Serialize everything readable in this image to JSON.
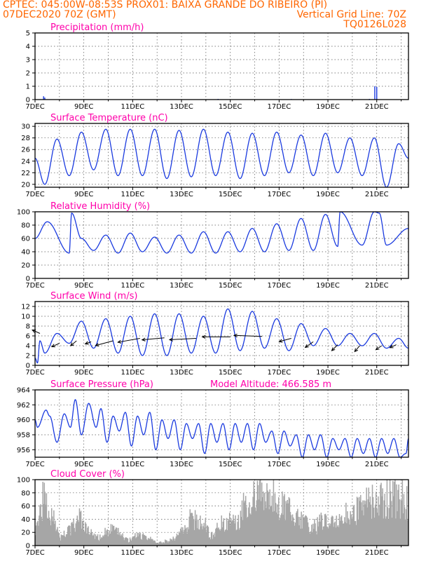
{
  "header": {
    "line1_left": "CPTEC:  045:00W-08:53S  PROX01: BAIXA GRANDE DO RIBEIRO (PI)",
    "line2_left": "07DEC2020 70Z (GMT)",
    "line2_right": "Vertical Grid Line: 70Z",
    "line3_right": "TQ0126L028"
  },
  "colors": {
    "header": "#ff6600",
    "title": "#ff00aa",
    "series": "#1a3adf",
    "cloud": "#a6a6a6",
    "arrow": "#000000"
  },
  "x_axis": {
    "tick_labels": [
      "7DEC",
      "9DEC",
      "11DEC",
      "13DEC",
      "15DEC",
      "17DEC",
      "19DEC",
      "21DEC"
    ],
    "day_range": [
      0,
      15.3
    ]
  },
  "chart_data": [
    {
      "type": "bar",
      "title": "Precipitation (mm/h)",
      "ylim": [
        0,
        5
      ],
      "yticks": [
        "0",
        "1",
        "2",
        "3",
        "4",
        "5"
      ],
      "x_days": [
        0.35,
        0.4,
        7.5,
        10.5,
        13.7,
        13.92,
        14.0
      ],
      "values": [
        0.25,
        0.15,
        0.05,
        0.04,
        0.05,
        1.0,
        0.95
      ]
    },
    {
      "type": "line",
      "title": "Surface Temperature (nC)",
      "ylim": [
        19.5,
        30.5
      ],
      "yticks": [
        "20",
        "22",
        "24",
        "26",
        "28",
        "30"
      ],
      "mins": [
        {
          "day": 0.4,
          "v": 20.0
        },
        {
          "day": 1.4,
          "v": 21.5
        },
        {
          "day": 2.4,
          "v": 22.5
        },
        {
          "day": 3.4,
          "v": 21.5
        },
        {
          "day": 4.4,
          "v": 21.5
        },
        {
          "day": 5.4,
          "v": 21.0
        },
        {
          "day": 6.4,
          "v": 21.3
        },
        {
          "day": 7.4,
          "v": 21.5
        },
        {
          "day": 8.4,
          "v": 21.0
        },
        {
          "day": 9.4,
          "v": 21.5
        },
        {
          "day": 10.4,
          "v": 22.0
        },
        {
          "day": 11.4,
          "v": 21.5
        },
        {
          "day": 12.4,
          "v": 22.0
        },
        {
          "day": 13.4,
          "v": 21.5
        },
        {
          "day": 14.4,
          "v": 19.5
        },
        {
          "day": 15.3,
          "v": 24.5
        }
      ],
      "maxs": [
        {
          "day": 0.0,
          "v": 24.5
        },
        {
          "day": 0.9,
          "v": 27.8
        },
        {
          "day": 1.9,
          "v": 29.0
        },
        {
          "day": 2.9,
          "v": 29.5
        },
        {
          "day": 3.9,
          "v": 29.5
        },
        {
          "day": 4.9,
          "v": 29.5
        },
        {
          "day": 5.9,
          "v": 29.3
        },
        {
          "day": 6.9,
          "v": 29.5
        },
        {
          "day": 7.9,
          "v": 29.0
        },
        {
          "day": 8.9,
          "v": 28.8
        },
        {
          "day": 9.9,
          "v": 29.0
        },
        {
          "day": 10.9,
          "v": 28.5
        },
        {
          "day": 11.9,
          "v": 28.8
        },
        {
          "day": 12.9,
          "v": 28.0
        },
        {
          "day": 13.9,
          "v": 28.0
        },
        {
          "day": 14.9,
          "v": 27.0
        }
      ]
    },
    {
      "type": "line",
      "title": "Relative Humidity (%)",
      "ylim": [
        0,
        100
      ],
      "yticks": [
        "0",
        "20",
        "40",
        "60",
        "80",
        "100"
      ],
      "mins": [
        {
          "day": 1.4,
          "v": 38
        },
        {
          "day": 2.4,
          "v": 42
        },
        {
          "day": 3.4,
          "v": 38
        },
        {
          "day": 4.4,
          "v": 40
        },
        {
          "day": 5.4,
          "v": 38
        },
        {
          "day": 6.4,
          "v": 38
        },
        {
          "day": 7.4,
          "v": 38
        },
        {
          "day": 8.4,
          "v": 40
        },
        {
          "day": 9.4,
          "v": 40
        },
        {
          "day": 10.4,
          "v": 42
        },
        {
          "day": 11.4,
          "v": 42
        },
        {
          "day": 12.4,
          "v": 48
        },
        {
          "day": 13.4,
          "v": 50
        },
        {
          "day": 14.4,
          "v": 50
        },
        {
          "day": 15.3,
          "v": 75
        }
      ],
      "maxs": [
        {
          "day": 0.0,
          "v": 60
        },
        {
          "day": 0.5,
          "v": 85
        },
        {
          "day": 1.5,
          "v": 98
        },
        {
          "day": 1.9,
          "v": 60
        },
        {
          "day": 2.9,
          "v": 65
        },
        {
          "day": 3.9,
          "v": 68
        },
        {
          "day": 4.9,
          "v": 62
        },
        {
          "day": 5.9,
          "v": 65
        },
        {
          "day": 6.9,
          "v": 70
        },
        {
          "day": 7.9,
          "v": 70
        },
        {
          "day": 8.9,
          "v": 75
        },
        {
          "day": 9.9,
          "v": 82
        },
        {
          "day": 10.9,
          "v": 90
        },
        {
          "day": 11.9,
          "v": 96
        },
        {
          "day": 12.5,
          "v": 100
        },
        {
          "day": 13.9,
          "v": 100
        },
        {
          "day": 14.1,
          "v": 98
        }
      ]
    },
    {
      "type": "line",
      "title": "Surface Wind (m/s)",
      "ylim": [
        0,
        13
      ],
      "yticks": [
        "0",
        "2",
        "4",
        "6",
        "8",
        "10",
        "12"
      ],
      "mins": [
        {
          "day": 0.0,
          "v": 1.5
        },
        {
          "day": 0.4,
          "v": 2.5
        },
        {
          "day": 1.4,
          "v": 4.5
        },
        {
          "day": 2.4,
          "v": 3.5
        },
        {
          "day": 3.4,
          "v": 2.5
        },
        {
          "day": 4.4,
          "v": 2.0
        },
        {
          "day": 5.4,
          "v": 2.0
        },
        {
          "day": 6.4,
          "v": 2.5
        },
        {
          "day": 7.4,
          "v": 2.5
        },
        {
          "day": 8.4,
          "v": 3.0
        },
        {
          "day": 9.4,
          "v": 3.5
        },
        {
          "day": 10.4,
          "v": 3.0
        },
        {
          "day": 11.4,
          "v": 4.0
        },
        {
          "day": 12.4,
          "v": 4.0
        },
        {
          "day": 13.4,
          "v": 4.0
        },
        {
          "day": 14.4,
          "v": 3.5
        },
        {
          "day": 15.3,
          "v": 3.5
        }
      ],
      "maxs": [
        {
          "day": 0.1,
          "v": 0.5
        },
        {
          "day": 0.2,
          "v": 5.0
        },
        {
          "day": 0.9,
          "v": 6.5
        },
        {
          "day": 1.9,
          "v": 9.0
        },
        {
          "day": 2.9,
          "v": 9.5
        },
        {
          "day": 3.9,
          "v": 10.0
        },
        {
          "day": 4.9,
          "v": 10.5
        },
        {
          "day": 5.9,
          "v": 10.5
        },
        {
          "day": 6.9,
          "v": 10.0
        },
        {
          "day": 7.9,
          "v": 11.5
        },
        {
          "day": 8.9,
          "v": 11.0
        },
        {
          "day": 9.9,
          "v": 9.5
        },
        {
          "day": 10.9,
          "v": 8.5
        },
        {
          "day": 11.9,
          "v": 7.5
        },
        {
          "day": 12.9,
          "v": 6.5
        },
        {
          "day": 13.9,
          "v": 6.5
        },
        {
          "day": 14.9,
          "v": 5.5
        }
      ],
      "arrows": [
        {
          "day": 0.2,
          "v": 6.5,
          "dir_deg": 155,
          "len": 12
        },
        {
          "day": 1.0,
          "v": 4.5,
          "dir_deg": 205,
          "len": 12
        },
        {
          "day": 1.7,
          "v": 5.0,
          "dir_deg": 220,
          "len": 11
        },
        {
          "day": 2.3,
          "v": 4.8,
          "dir_deg": 200,
          "len": 9
        },
        {
          "day": 3.2,
          "v": 5.0,
          "dir_deg": 195,
          "len": 26
        },
        {
          "day": 4.3,
          "v": 5.5,
          "dir_deg": 190,
          "len": 32
        },
        {
          "day": 5.3,
          "v": 5.6,
          "dir_deg": 185,
          "len": 32
        },
        {
          "day": 6.6,
          "v": 5.5,
          "dir_deg": 183,
          "len": 38
        },
        {
          "day": 8.0,
          "v": 5.8,
          "dir_deg": 180,
          "len": 40
        },
        {
          "day": 9.3,
          "v": 5.9,
          "dir_deg": 178,
          "len": 40
        },
        {
          "day": 10.5,
          "v": 5.5,
          "dir_deg": 195,
          "len": 18
        },
        {
          "day": 11.4,
          "v": 4.8,
          "dir_deg": 215,
          "len": 14
        },
        {
          "day": 12.4,
          "v": 4.2,
          "dir_deg": 225,
          "len": 12
        },
        {
          "day": 13.3,
          "v": 4.0,
          "dir_deg": 230,
          "len": 11
        },
        {
          "day": 14.2,
          "v": 4.0,
          "dir_deg": 215,
          "len": 10
        },
        {
          "day": 14.8,
          "v": 4.2,
          "dir_deg": 205,
          "len": 10
        }
      ]
    },
    {
      "type": "line",
      "title": "Surface Pressure (hPa)",
      "subtitle": "Model Altitude: 466.585 m",
      "ylim": [
        955,
        964
      ],
      "yticks": [
        "956",
        "958",
        "960",
        "962",
        "964"
      ],
      "peaks": [
        {
          "day": 0.0,
          "v": 960.0
        },
        {
          "day": 0.1,
          "v": 959.0
        },
        {
          "day": 0.45,
          "v": 961.3
        },
        {
          "day": 0.6,
          "v": 960.5
        },
        {
          "day": 0.9,
          "v": 957.0
        },
        {
          "day": 1.2,
          "v": 960.8
        },
        {
          "day": 1.45,
          "v": 959.0
        },
        {
          "day": 1.65,
          "v": 962.7
        },
        {
          "day": 1.9,
          "v": 958.0
        },
        {
          "day": 2.2,
          "v": 962.2
        },
        {
          "day": 2.5,
          "v": 959.0
        },
        {
          "day": 2.7,
          "v": 961.5
        },
        {
          "day": 2.95,
          "v": 957.0
        },
        {
          "day": 3.2,
          "v": 960.5
        },
        {
          "day": 3.45,
          "v": 958.5
        },
        {
          "day": 3.7,
          "v": 961.0
        },
        {
          "day": 3.95,
          "v": 956.5
        },
        {
          "day": 4.2,
          "v": 960.5
        },
        {
          "day": 4.45,
          "v": 958.0
        },
        {
          "day": 4.7,
          "v": 961.0
        },
        {
          "day": 4.95,
          "v": 956.0
        },
        {
          "day": 5.2,
          "v": 960.0
        },
        {
          "day": 5.45,
          "v": 957.5
        },
        {
          "day": 5.7,
          "v": 960.0
        },
        {
          "day": 5.95,
          "v": 956.0
        },
        {
          "day": 6.2,
          "v": 959.5
        },
        {
          "day": 6.45,
          "v": 957.5
        },
        {
          "day": 6.7,
          "v": 959.5
        },
        {
          "day": 6.95,
          "v": 955.5
        },
        {
          "day": 7.2,
          "v": 959.5
        },
        {
          "day": 7.45,
          "v": 957.0
        },
        {
          "day": 7.7,
          "v": 959.5
        },
        {
          "day": 7.95,
          "v": 956.0
        },
        {
          "day": 8.2,
          "v": 959.5
        },
        {
          "day": 8.45,
          "v": 957.0
        },
        {
          "day": 8.7,
          "v": 959.5
        },
        {
          "day": 8.95,
          "v": 956.0
        },
        {
          "day": 9.2,
          "v": 959.5
        },
        {
          "day": 9.45,
          "v": 957.0
        },
        {
          "day": 9.7,
          "v": 958.5
        },
        {
          "day": 9.95,
          "v": 955.5
        },
        {
          "day": 10.2,
          "v": 958.5
        },
        {
          "day": 10.45,
          "v": 956.5
        },
        {
          "day": 10.7,
          "v": 958.0
        },
        {
          "day": 10.95,
          "v": 955.0
        },
        {
          "day": 11.2,
          "v": 958.0
        },
        {
          "day": 11.45,
          "v": 956.0
        },
        {
          "day": 11.7,
          "v": 958.0
        },
        {
          "day": 11.95,
          "v": 955.0
        },
        {
          "day": 12.2,
          "v": 957.5
        },
        {
          "day": 12.45,
          "v": 956.0
        },
        {
          "day": 12.7,
          "v": 957.5
        },
        {
          "day": 12.95,
          "v": 955.0
        },
        {
          "day": 13.2,
          "v": 957.5
        },
        {
          "day": 13.45,
          "v": 955.5
        },
        {
          "day": 13.7,
          "v": 957.5
        },
        {
          "day": 13.95,
          "v": 955.0
        },
        {
          "day": 14.2,
          "v": 957.5
        },
        {
          "day": 14.45,
          "v": 955.5
        },
        {
          "day": 14.7,
          "v": 957.5
        },
        {
          "day": 14.95,
          "v": 955.0
        },
        {
          "day": 15.2,
          "v": 955.5
        },
        {
          "day": 15.3,
          "v": 957.5
        }
      ]
    },
    {
      "type": "bar",
      "title": "Cloud Cover (%)",
      "ylim": [
        0,
        100
      ],
      "yticks": [
        "0",
        "20",
        "40",
        "60",
        "80",
        "100"
      ],
      "levels": [
        {
          "day": 0.0,
          "v": 35
        },
        {
          "day": 0.3,
          "v": 85
        },
        {
          "day": 0.7,
          "v": 65
        },
        {
          "day": 1.0,
          "v": 15
        },
        {
          "day": 1.4,
          "v": 30
        },
        {
          "day": 1.8,
          "v": 50
        },
        {
          "day": 2.2,
          "v": 25
        },
        {
          "day": 2.6,
          "v": 15
        },
        {
          "day": 3.0,
          "v": 30
        },
        {
          "day": 3.4,
          "v": 25
        },
        {
          "day": 3.8,
          "v": 10
        },
        {
          "day": 4.2,
          "v": 20
        },
        {
          "day": 4.6,
          "v": 15
        },
        {
          "day": 5.0,
          "v": 5
        },
        {
          "day": 5.5,
          "v": 10
        },
        {
          "day": 6.0,
          "v": 25
        },
        {
          "day": 6.4,
          "v": 50
        },
        {
          "day": 6.8,
          "v": 45
        },
        {
          "day": 7.2,
          "v": 20
        },
        {
          "day": 7.6,
          "v": 40
        },
        {
          "day": 8.0,
          "v": 55
        },
        {
          "day": 8.3,
          "v": 50
        },
        {
          "day": 8.6,
          "v": 85
        },
        {
          "day": 9.0,
          "v": 90
        },
        {
          "day": 9.4,
          "v": 92
        },
        {
          "day": 9.8,
          "v": 90
        },
        {
          "day": 10.2,
          "v": 80
        },
        {
          "day": 10.6,
          "v": 55
        },
        {
          "day": 11.0,
          "v": 45
        },
        {
          "day": 11.4,
          "v": 35
        },
        {
          "day": 11.8,
          "v": 45
        },
        {
          "day": 12.2,
          "v": 40
        },
        {
          "day": 12.6,
          "v": 55
        },
        {
          "day": 13.0,
          "v": 65
        },
        {
          "day": 13.4,
          "v": 80
        },
        {
          "day": 13.8,
          "v": 85
        },
        {
          "day": 14.2,
          "v": 90
        },
        {
          "day": 14.6,
          "v": 88
        },
        {
          "day": 15.0,
          "v": 90
        },
        {
          "day": 15.3,
          "v": 85
        }
      ]
    }
  ]
}
